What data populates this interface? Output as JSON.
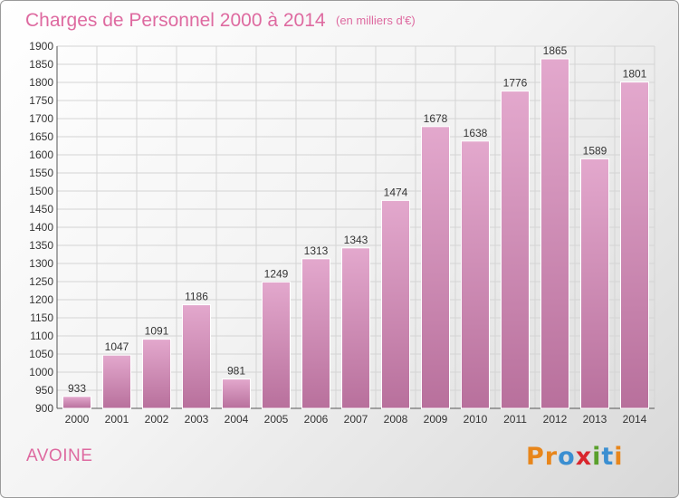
{
  "header": {
    "title": "Charges de Personnel 2000 à 2014",
    "unit": "(en milliers d'€)"
  },
  "footer": {
    "commune": "AVOINE",
    "logo_letters": [
      "P",
      "r",
      "o",
      "x",
      "i",
      "t",
      "i"
    ]
  },
  "colors": {
    "title": "#de6aa0",
    "bar_light": "#e3a8cd",
    "bar_dark": "#b8709c",
    "logo": [
      "#e8861b",
      "#e8861b",
      "#3b8fd1",
      "#d9262d",
      "#5aa02c",
      "#3b8fd1",
      "#e8861b"
    ]
  },
  "chart_data": {
    "type": "bar",
    "title": "Charges de Personnel 2000 à 2014",
    "subtitle": "(en milliers d'€)",
    "categories": [
      "2000",
      "2001",
      "2002",
      "2003",
      "2004",
      "2005",
      "2006",
      "2007",
      "2008",
      "2009",
      "2010",
      "2011",
      "2012",
      "2013",
      "2014"
    ],
    "values": [
      933,
      1047,
      1091,
      1186,
      981,
      1249,
      1313,
      1343,
      1474,
      1678,
      1638,
      1776,
      1865,
      1589,
      1801
    ],
    "ylim": [
      900,
      1900
    ],
    "yticks": [
      900,
      950,
      1000,
      1050,
      1100,
      1150,
      1200,
      1250,
      1300,
      1350,
      1400,
      1450,
      1500,
      1550,
      1600,
      1650,
      1700,
      1750,
      1800,
      1850,
      1900
    ],
    "grid": true,
    "xlabel": "",
    "ylabel": ""
  }
}
